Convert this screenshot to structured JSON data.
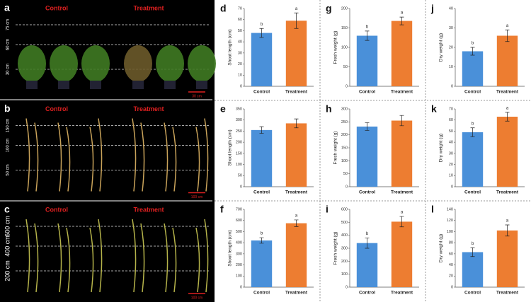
{
  "photo_panels": [
    {
      "panel": "a",
      "groups": [
        "Control",
        "Treatment"
      ],
      "height_labels": [
        "75 cm",
        "60 cm",
        "30 cm"
      ],
      "scale_label": "30 cm"
    },
    {
      "panel": "b",
      "groups": [
        "Control",
        "Treatment"
      ],
      "height_labels": [
        "150 cm",
        "100 cm",
        "50 cm"
      ],
      "scale_label": "100 cm"
    },
    {
      "panel": "c",
      "groups": [
        "Control",
        "Treatment"
      ],
      "height_labels": [
        "600 cm",
        "400 cm",
        "200 cm"
      ],
      "scale_label": "100 cm"
    }
  ],
  "chart_data": [
    {
      "type": "bar",
      "panel": "d",
      "ylabel": "Shoot length (cm)",
      "categories": [
        "Control",
        "Treatment"
      ],
      "values": [
        48,
        59
      ],
      "errors": [
        4,
        7
      ],
      "annotations": [
        "b",
        "a"
      ],
      "colors": [
        "#4a90d9",
        "#ed7d31"
      ],
      "ylim": [
        0,
        70
      ],
      "yticks": [
        0,
        10,
        20,
        30,
        40,
        50,
        60,
        70
      ]
    },
    {
      "type": "bar",
      "panel": "g",
      "ylabel": "Fresh weight (g)",
      "categories": [
        "Control",
        "Treatment"
      ],
      "values": [
        130,
        168
      ],
      "errors": [
        12,
        10
      ],
      "annotations": [
        "b",
        "a"
      ],
      "colors": [
        "#4a90d9",
        "#ed7d31"
      ],
      "ylim": [
        0,
        200
      ],
      "yticks": [
        0,
        50,
        100,
        150,
        200
      ]
    },
    {
      "type": "bar",
      "panel": "j",
      "ylabel": "Dry weight (g)",
      "categories": [
        "Control",
        "Treatment"
      ],
      "values": [
        18,
        26
      ],
      "errors": [
        2,
        3
      ],
      "annotations": [
        "b",
        "a"
      ],
      "colors": [
        "#4a90d9",
        "#ed7d31"
      ],
      "ylim": [
        0,
        40
      ],
      "yticks": [
        0,
        10,
        20,
        30,
        40
      ]
    },
    {
      "type": "bar",
      "panel": "e",
      "ylabel": "Shoot length (cm)",
      "categories": [
        "Control",
        "Treatment"
      ],
      "values": [
        255,
        285
      ],
      "errors": [
        15,
        20
      ],
      "colors": [
        "#4a90d9",
        "#ed7d31"
      ],
      "ylim": [
        0,
        350
      ],
      "yticks": [
        0,
        50,
        100,
        150,
        200,
        250,
        300,
        350
      ]
    },
    {
      "type": "bar",
      "panel": "h",
      "ylabel": "Fresh weight (g)",
      "categories": [
        "Control",
        "Treatment"
      ],
      "values": [
        232,
        255
      ],
      "errors": [
        15,
        20
      ],
      "colors": [
        "#4a90d9",
        "#ed7d31"
      ],
      "ylim": [
        0,
        300
      ],
      "yticks": [
        0,
        50,
        100,
        150,
        200,
        250,
        300
      ]
    },
    {
      "type": "bar",
      "panel": "k",
      "ylabel": "Dry weight (g)",
      "categories": [
        "Control",
        "Treatment"
      ],
      "values": [
        49,
        63
      ],
      "errors": [
        4,
        4
      ],
      "annotations": [
        "b",
        "a"
      ],
      "colors": [
        "#4a90d9",
        "#ed7d31"
      ],
      "ylim": [
        0,
        70
      ],
      "yticks": [
        0,
        10,
        20,
        30,
        40,
        50,
        60,
        70
      ]
    },
    {
      "type": "bar",
      "panel": "f",
      "ylabel": "Shoot length (cm)",
      "categories": [
        "Control",
        "Treatment"
      ],
      "values": [
        420,
        575
      ],
      "errors": [
        25,
        30
      ],
      "annotations": [
        "b",
        "a"
      ],
      "colors": [
        "#4a90d9",
        "#ed7d31"
      ],
      "ylim": [
        0,
        700
      ],
      "yticks": [
        0,
        100,
        200,
        300,
        400,
        500,
        600,
        700
      ]
    },
    {
      "type": "bar",
      "panel": "i",
      "ylabel": "Fresh weight (g)",
      "categories": [
        "Control",
        "Treatment"
      ],
      "values": [
        340,
        505
      ],
      "errors": [
        40,
        40
      ],
      "annotations": [
        "b",
        "a"
      ],
      "colors": [
        "#4a90d9",
        "#ed7d31"
      ],
      "ylim": [
        0,
        600
      ],
      "yticks": [
        0,
        100,
        200,
        300,
        400,
        500,
        600
      ]
    },
    {
      "type": "bar",
      "panel": "l",
      "ylabel": "Dry weight (g)",
      "categories": [
        "Control",
        "Treatment"
      ],
      "values": [
        63,
        102
      ],
      "errors": [
        8,
        10
      ],
      "annotations": [
        "b",
        "a"
      ],
      "colors": [
        "#4a90d9",
        "#ed7d31"
      ],
      "ylim": [
        0,
        140
      ],
      "yticks": [
        0,
        20,
        40,
        60,
        80,
        100,
        120,
        140
      ]
    }
  ]
}
